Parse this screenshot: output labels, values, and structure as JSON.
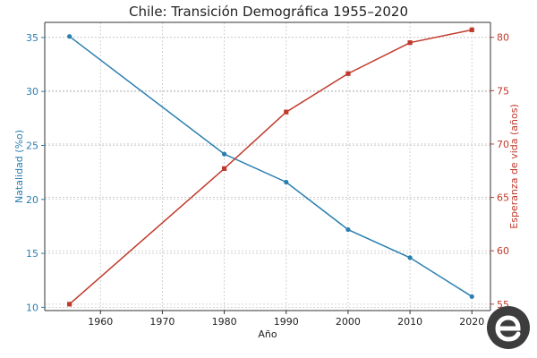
{
  "colors": {
    "birth": "#2a7fb0",
    "life": "#c0392b",
    "grid": "#c8c8c8",
    "axis": "#333333",
    "logo": "#3d3d3d"
  },
  "logo": {
    "icon": "stylized-e-logo-icon"
  },
  "chart_data": {
    "type": "line",
    "title": "Chile: Transición Demográfica 1955–2020",
    "xlabel": "Año",
    "ylabel_left": "Natalidad (%o)",
    "ylabel_right": "Esperanza de vida (años)",
    "x": [
      1955,
      1980,
      1990,
      2000,
      2010,
      2020
    ],
    "xlim": [
      1951,
      2023
    ],
    "ylim_left": [
      9.7,
      36.4
    ],
    "ylim_right": [
      54.4,
      81.4
    ],
    "xticks": [
      1960,
      1970,
      1980,
      1990,
      2000,
      2010,
      2020
    ],
    "yticks_left": [
      10,
      15,
      20,
      25,
      30,
      35
    ],
    "yticks_right": [
      55,
      60,
      65,
      70,
      75,
      80
    ],
    "grid": true,
    "series": [
      {
        "name": "Natalidad",
        "axis": "left",
        "marker": "circle",
        "values": [
          35.1,
          24.2,
          21.6,
          17.2,
          14.6,
          11.0
        ]
      },
      {
        "name": "Esperanza de vida",
        "axis": "right",
        "marker": "square",
        "values": [
          55.0,
          67.7,
          73.0,
          76.6,
          79.5,
          80.7
        ]
      }
    ]
  }
}
